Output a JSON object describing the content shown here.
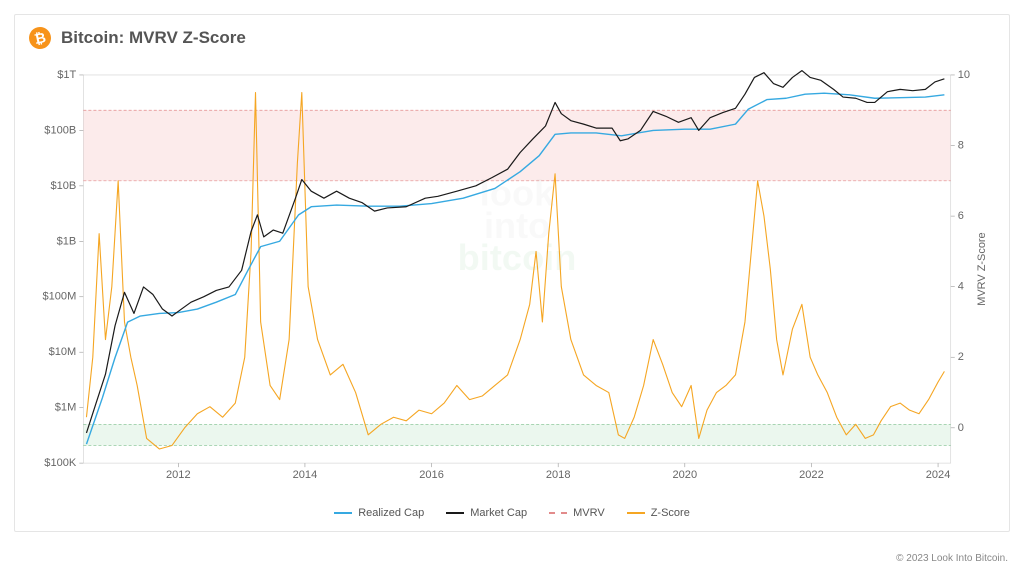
{
  "title": "Bitcoin: MVRV Z-Score",
  "copyright": "© 2023 Look Into Bitcoin.",
  "watermark": {
    "line1": "look",
    "line2": "into",
    "line3": "bitcoin",
    "color_grey": "#cfcfcf",
    "color_green": "#9ed2a6",
    "fontsize": 36
  },
  "chart": {
    "type": "line-dual-axis",
    "x_domain_years": [
      2010.5,
      2024.2
    ],
    "x_ticks": [
      2012,
      2014,
      2016,
      2018,
      2020,
      2022,
      2024
    ],
    "y_left_log_domain": [
      100000,
      1000000000000
    ],
    "y_left_ticks": [
      {
        "v": 100000,
        "label": "$100K"
      },
      {
        "v": 1000000,
        "label": "$1M"
      },
      {
        "v": 10000000,
        "label": "$10M"
      },
      {
        "v": 100000000,
        "label": "$100M"
      },
      {
        "v": 1000000000,
        "label": "$1B"
      },
      {
        "v": 10000000000,
        "label": "$10B"
      },
      {
        "v": 100000000000,
        "label": "$100B"
      },
      {
        "v": 1000000000000,
        "label": "$1T"
      }
    ],
    "y_right_linear_domain": [
      -1,
      10
    ],
    "y_right_ticks": [
      0,
      2,
      4,
      6,
      8,
      10
    ],
    "y_right_label": "MVRV Z-Score",
    "bands": {
      "lower": {
        "z_min": -0.5,
        "z_max": 0.1,
        "fill": "#c7e7cf",
        "opacity": 0.35,
        "stroke": "#7fc08f"
      },
      "upper": {
        "z_min": 7.0,
        "z_max": 9.0,
        "fill": "#f7c6c6",
        "opacity": 0.35,
        "stroke": "#e28b8b"
      }
    },
    "legend": [
      {
        "key": "realized",
        "label": "Realized Cap",
        "color": "#36a9e1",
        "dash": ""
      },
      {
        "key": "market",
        "label": "Market Cap",
        "color": "#1a1a1a",
        "dash": ""
      },
      {
        "key": "mvrv_band",
        "label": "MVRV",
        "color": "#e28b8b",
        "dash": "4 3"
      },
      {
        "key": "zscore",
        "label": "Z-Score",
        "color": "#f5a623",
        "dash": ""
      }
    ],
    "series": {
      "market_cap": {
        "color": "#1a1a1a",
        "width": 1.2,
        "points": [
          [
            2010.55,
            350000.0
          ],
          [
            2010.7,
            1200000.0
          ],
          [
            2010.85,
            4000000.0
          ],
          [
            2011.0,
            30000000.0
          ],
          [
            2011.15,
            120000000.0
          ],
          [
            2011.3,
            50000000.0
          ],
          [
            2011.45,
            150000000.0
          ],
          [
            2011.6,
            110000000.0
          ],
          [
            2011.75,
            60000000.0
          ],
          [
            2011.9,
            45000000.0
          ],
          [
            2012.05,
            60000000.0
          ],
          [
            2012.2,
            80000000.0
          ],
          [
            2012.4,
            100000000.0
          ],
          [
            2012.6,
            130000000.0
          ],
          [
            2012.8,
            150000000.0
          ],
          [
            2013.0,
            300000000.0
          ],
          [
            2013.15,
            1500000000.0
          ],
          [
            2013.25,
            3000000000.0
          ],
          [
            2013.35,
            1200000000.0
          ],
          [
            2013.5,
            1600000000.0
          ],
          [
            2013.65,
            1400000000.0
          ],
          [
            2013.85,
            6000000000.0
          ],
          [
            2013.95,
            13000000000.0
          ],
          [
            2014.1,
            8000000000.0
          ],
          [
            2014.3,
            6000000000.0
          ],
          [
            2014.5,
            8000000000.0
          ],
          [
            2014.7,
            6000000000.0
          ],
          [
            2014.9,
            5000000000.0
          ],
          [
            2015.1,
            3500000000.0
          ],
          [
            2015.3,
            4000000000.0
          ],
          [
            2015.6,
            4200000000.0
          ],
          [
            2015.9,
            6000000000.0
          ],
          [
            2016.1,
            6500000000.0
          ],
          [
            2016.4,
            8000000000.0
          ],
          [
            2016.7,
            10000000000.0
          ],
          [
            2016.95,
            14000000000.0
          ],
          [
            2017.2,
            20000000000.0
          ],
          [
            2017.4,
            40000000000.0
          ],
          [
            2017.6,
            70000000000.0
          ],
          [
            2017.8,
            120000000000.0
          ],
          [
            2017.95,
            320000000000.0
          ],
          [
            2018.05,
            200000000000.0
          ],
          [
            2018.2,
            150000000000.0
          ],
          [
            2018.4,
            130000000000.0
          ],
          [
            2018.6,
            110000000000.0
          ],
          [
            2018.85,
            110000000000.0
          ],
          [
            2018.98,
            65000000000.0
          ],
          [
            2019.1,
            70000000000.0
          ],
          [
            2019.3,
            100000000000.0
          ],
          [
            2019.5,
            220000000000.0
          ],
          [
            2019.7,
            180000000000.0
          ],
          [
            2019.9,
            140000000000.0
          ],
          [
            2020.1,
            170000000000.0
          ],
          [
            2020.22,
            100000000000.0
          ],
          [
            2020.4,
            170000000000.0
          ],
          [
            2020.6,
            210000000000.0
          ],
          [
            2020.8,
            250000000000.0
          ],
          [
            2020.95,
            450000000000.0
          ],
          [
            2021.1,
            900000000000.0
          ],
          [
            2021.25,
            1100000000000.0
          ],
          [
            2021.4,
            700000000000.0
          ],
          [
            2021.55,
            600000000000.0
          ],
          [
            2021.7,
            900000000000.0
          ],
          [
            2021.85,
            1200000000000.0
          ],
          [
            2021.98,
            900000000000.0
          ],
          [
            2022.15,
            800000000000.0
          ],
          [
            2022.35,
            550000000000.0
          ],
          [
            2022.5,
            400000000000.0
          ],
          [
            2022.7,
            380000000000.0
          ],
          [
            2022.88,
            320000000000.0
          ],
          [
            2023.0,
            320000000000.0
          ],
          [
            2023.2,
            500000000000.0
          ],
          [
            2023.4,
            550000000000.0
          ],
          [
            2023.6,
            520000000000.0
          ],
          [
            2023.8,
            550000000000.0
          ],
          [
            2023.95,
            750000000000.0
          ],
          [
            2024.1,
            850000000000.0
          ]
        ]
      },
      "realized_cap": {
        "color": "#36a9e1",
        "width": 1.4,
        "points": [
          [
            2010.55,
            220000.0
          ],
          [
            2010.8,
            1500000.0
          ],
          [
            2011.0,
            8000000.0
          ],
          [
            2011.2,
            35000000.0
          ],
          [
            2011.4,
            45000000.0
          ],
          [
            2011.7,
            50000000.0
          ],
          [
            2012.0,
            52000000.0
          ],
          [
            2012.3,
            60000000.0
          ],
          [
            2012.6,
            80000000.0
          ],
          [
            2012.9,
            110000000.0
          ],
          [
            2013.1,
            300000000.0
          ],
          [
            2013.3,
            800000000.0
          ],
          [
            2013.6,
            1000000000.0
          ],
          [
            2013.9,
            3000000000.0
          ],
          [
            2014.1,
            4200000000.0
          ],
          [
            2014.5,
            4500000000.0
          ],
          [
            2015.0,
            4300000000.0
          ],
          [
            2015.5,
            4300000000.0
          ],
          [
            2016.0,
            4800000000.0
          ],
          [
            2016.5,
            6000000000.0
          ],
          [
            2017.0,
            9000000000.0
          ],
          [
            2017.4,
            18000000000.0
          ],
          [
            2017.7,
            35000000000.0
          ],
          [
            2017.95,
            85000000000.0
          ],
          [
            2018.2,
            90000000000.0
          ],
          [
            2018.6,
            90000000000.0
          ],
          [
            2019.0,
            80000000000.0
          ],
          [
            2019.5,
            100000000000.0
          ],
          [
            2020.0,
            105000000000.0
          ],
          [
            2020.4,
            105000000000.0
          ],
          [
            2020.8,
            130000000000.0
          ],
          [
            2021.0,
            240000000000.0
          ],
          [
            2021.3,
            360000000000.0
          ],
          [
            2021.6,
            380000000000.0
          ],
          [
            2021.9,
            450000000000.0
          ],
          [
            2022.2,
            470000000000.0
          ],
          [
            2022.6,
            440000000000.0
          ],
          [
            2023.0,
            380000000000.0
          ],
          [
            2023.4,
            390000000000.0
          ],
          [
            2023.8,
            400000000000.0
          ],
          [
            2024.1,
            440000000000.0
          ]
        ]
      },
      "z_score": {
        "color": "#f5a623",
        "width": 1.1,
        "points": [
          [
            2010.55,
            0.3
          ],
          [
            2010.65,
            2.0
          ],
          [
            2010.75,
            5.5
          ],
          [
            2010.85,
            2.5
          ],
          [
            2010.95,
            4.0
          ],
          [
            2011.05,
            7.0
          ],
          [
            2011.15,
            3.0
          ],
          [
            2011.25,
            2.0
          ],
          [
            2011.35,
            1.2
          ],
          [
            2011.5,
            -0.3
          ],
          [
            2011.7,
            -0.6
          ],
          [
            2011.9,
            -0.5
          ],
          [
            2012.1,
            0.0
          ],
          [
            2012.3,
            0.4
          ],
          [
            2012.5,
            0.6
          ],
          [
            2012.7,
            0.3
          ],
          [
            2012.9,
            0.7
          ],
          [
            2013.05,
            2.0
          ],
          [
            2013.15,
            5.0
          ],
          [
            2013.22,
            9.5
          ],
          [
            2013.3,
            3.0
          ],
          [
            2013.45,
            1.2
          ],
          [
            2013.6,
            0.8
          ],
          [
            2013.75,
            2.5
          ],
          [
            2013.88,
            7.5
          ],
          [
            2013.95,
            9.5
          ],
          [
            2014.05,
            4.0
          ],
          [
            2014.2,
            2.5
          ],
          [
            2014.4,
            1.5
          ],
          [
            2014.6,
            1.8
          ],
          [
            2014.8,
            1.0
          ],
          [
            2015.0,
            -0.2
          ],
          [
            2015.2,
            0.1
          ],
          [
            2015.4,
            0.3
          ],
          [
            2015.6,
            0.2
          ],
          [
            2015.8,
            0.5
          ],
          [
            2016.0,
            0.4
          ],
          [
            2016.2,
            0.7
          ],
          [
            2016.4,
            1.2
          ],
          [
            2016.6,
            0.8
          ],
          [
            2016.8,
            0.9
          ],
          [
            2017.0,
            1.2
          ],
          [
            2017.2,
            1.5
          ],
          [
            2017.4,
            2.5
          ],
          [
            2017.55,
            3.5
          ],
          [
            2017.65,
            5.0
          ],
          [
            2017.75,
            3.0
          ],
          [
            2017.85,
            5.5
          ],
          [
            2017.95,
            7.2
          ],
          [
            2018.05,
            4.0
          ],
          [
            2018.2,
            2.5
          ],
          [
            2018.4,
            1.5
          ],
          [
            2018.6,
            1.2
          ],
          [
            2018.8,
            1.0
          ],
          [
            2018.95,
            -0.2
          ],
          [
            2019.05,
            -0.3
          ],
          [
            2019.2,
            0.3
          ],
          [
            2019.35,
            1.2
          ],
          [
            2019.5,
            2.5
          ],
          [
            2019.65,
            1.8
          ],
          [
            2019.8,
            1.0
          ],
          [
            2019.95,
            0.6
          ],
          [
            2020.1,
            1.2
          ],
          [
            2020.22,
            -0.3
          ],
          [
            2020.35,
            0.5
          ],
          [
            2020.5,
            1.0
          ],
          [
            2020.65,
            1.2
          ],
          [
            2020.8,
            1.5
          ],
          [
            2020.95,
            3.0
          ],
          [
            2021.05,
            5.0
          ],
          [
            2021.15,
            7.0
          ],
          [
            2021.25,
            6.0
          ],
          [
            2021.35,
            4.5
          ],
          [
            2021.45,
            2.5
          ],
          [
            2021.55,
            1.5
          ],
          [
            2021.7,
            2.8
          ],
          [
            2021.85,
            3.5
          ],
          [
            2021.98,
            2.0
          ],
          [
            2022.1,
            1.5
          ],
          [
            2022.25,
            1.0
          ],
          [
            2022.4,
            0.3
          ],
          [
            2022.55,
            -0.2
          ],
          [
            2022.7,
            0.1
          ],
          [
            2022.85,
            -0.3
          ],
          [
            2022.98,
            -0.2
          ],
          [
            2023.1,
            0.2
          ],
          [
            2023.25,
            0.6
          ],
          [
            2023.4,
            0.7
          ],
          [
            2023.55,
            0.5
          ],
          [
            2023.7,
            0.4
          ],
          [
            2023.85,
            0.8
          ],
          [
            2024.0,
            1.3
          ],
          [
            2024.1,
            1.6
          ]
        ]
      }
    }
  }
}
